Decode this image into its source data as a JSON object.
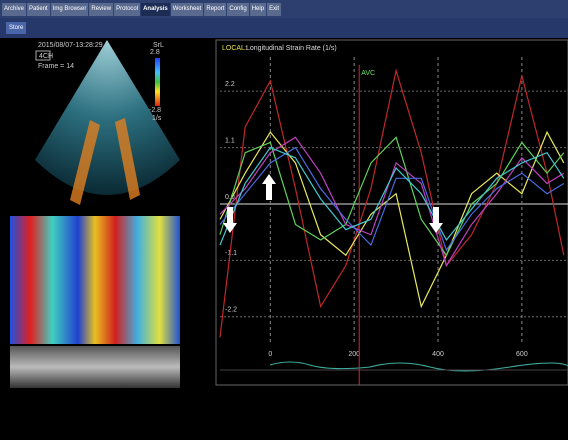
{
  "menu": {
    "tabs": [
      "Archive",
      "Patient",
      "Img Browser",
      "Review",
      "Protocol",
      "Analysis",
      "Worksheet",
      "Report",
      "Config",
      "Help",
      "Exit"
    ],
    "active_tab": 5
  },
  "toolbar": {
    "button": "Store"
  },
  "echo": {
    "timestamp": "2015/08/07-13:28:29",
    "view": "4CH",
    "frame": "Frame = 14",
    "scale_title": "SrL",
    "scale_max": 2.8,
    "scale_min": -2.8,
    "unit": "1/s"
  },
  "chart_data": {
    "type": "line",
    "title_prefix": "LOCAL:",
    "title": "Longitudinal Strain Rate (1/s)",
    "x": [
      -120,
      -60,
      0,
      60,
      120,
      180,
      240,
      300,
      360,
      420,
      480,
      540,
      600,
      660,
      700
    ],
    "series": [
      {
        "color": "#c0282a",
        "values": [
          -2.6,
          1.5,
          2.4,
          0.3,
          -2.0,
          -1.2,
          0.3,
          2.6,
          1.0,
          -1.2,
          -0.6,
          0.4,
          2.5,
          0.6,
          -1.0
        ]
      },
      {
        "color": "#e8e85a",
        "values": [
          -0.3,
          0.6,
          1.4,
          0.8,
          -0.6,
          -1.0,
          -0.2,
          0.2,
          -2.0,
          -1.0,
          0.2,
          0.6,
          0.2,
          1.4,
          0.8
        ]
      },
      {
        "color": "#5fd05a",
        "values": [
          -0.6,
          1.0,
          1.2,
          -0.4,
          -0.7,
          -0.4,
          0.8,
          1.3,
          -0.3,
          -1.0,
          0.0,
          0.4,
          1.2,
          0.6,
          1.0
        ]
      },
      {
        "color": "#c040c0",
        "values": [
          -0.2,
          0.3,
          1.0,
          1.3,
          0.6,
          -0.4,
          -0.6,
          0.8,
          0.4,
          -1.2,
          -0.4,
          0.2,
          0.9,
          0.4,
          0.6
        ]
      },
      {
        "color": "#4a6ae0",
        "values": [
          -0.4,
          0.2,
          0.8,
          1.1,
          0.3,
          -0.3,
          -0.8,
          0.5,
          0.5,
          -0.9,
          -0.2,
          0.3,
          0.6,
          0.2,
          0.4
        ]
      },
      {
        "color": "#40c8d0",
        "values": [
          -0.8,
          0.4,
          1.1,
          0.9,
          0.1,
          -0.5,
          -0.3,
          0.7,
          0.2,
          -0.7,
          -0.1,
          0.5,
          0.8,
          1.0,
          0.5
        ]
      }
    ],
    "xlim": [
      -120,
      710
    ],
    "ylim": [
      -2.75,
      3.1
    ],
    "xticks": [
      0,
      200,
      400,
      600
    ],
    "yticks": [
      2.2,
      1.1,
      {
        "value": 0,
        "label": "0.0"
      },
      -1.1,
      -2.2
    ],
    "annotation": {
      "text": "AVC",
      "x": 212
    },
    "grid": true
  }
}
